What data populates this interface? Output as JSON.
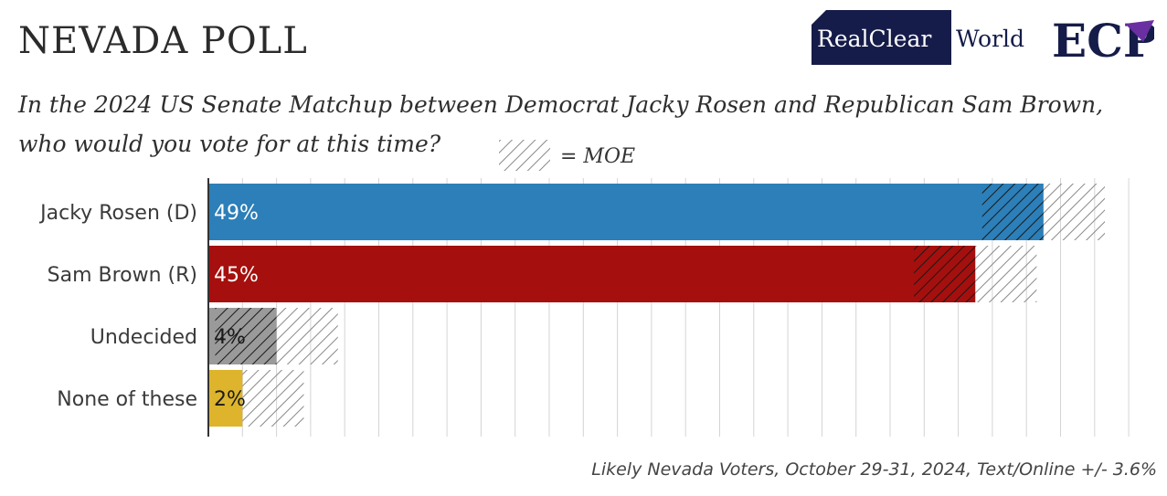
{
  "header": {
    "title": "NEVADA POLL",
    "question": "In the 2024 US Senate Matchup between Democrat Jacky Rosen and Republican Sam Brown, who would you vote for at this time?",
    "footnote": "Likely Nevada Voters, October 29-31, 2024, Text/Online +/- 3.6%"
  },
  "logos": {
    "realclear_part1": "RealClear",
    "realclear_part2": "World",
    "ecp": "ECP"
  },
  "colors": {
    "rosen": "#2c7fb8",
    "brown": "#a50f0d",
    "undecided": "#9a9a9a",
    "none": "#ddb42c",
    "grid": "#d4d4d4",
    "axis": "#333333",
    "logo_navy": "#151c49",
    "logo_purple": "#6a2fa0"
  },
  "chart_data": {
    "type": "bar",
    "orientation": "horizontal",
    "categories": [
      "Jacky Rosen (D)",
      "Sam Brown (R)",
      "Undecided",
      "None of these"
    ],
    "values": [
      49,
      45,
      4,
      2
    ],
    "value_labels": [
      "49%",
      "45%",
      "4%",
      "2%"
    ],
    "moe": 3.6,
    "moe_legend": "= MOE",
    "xlim": [
      0,
      54
    ],
    "grid": true
  }
}
